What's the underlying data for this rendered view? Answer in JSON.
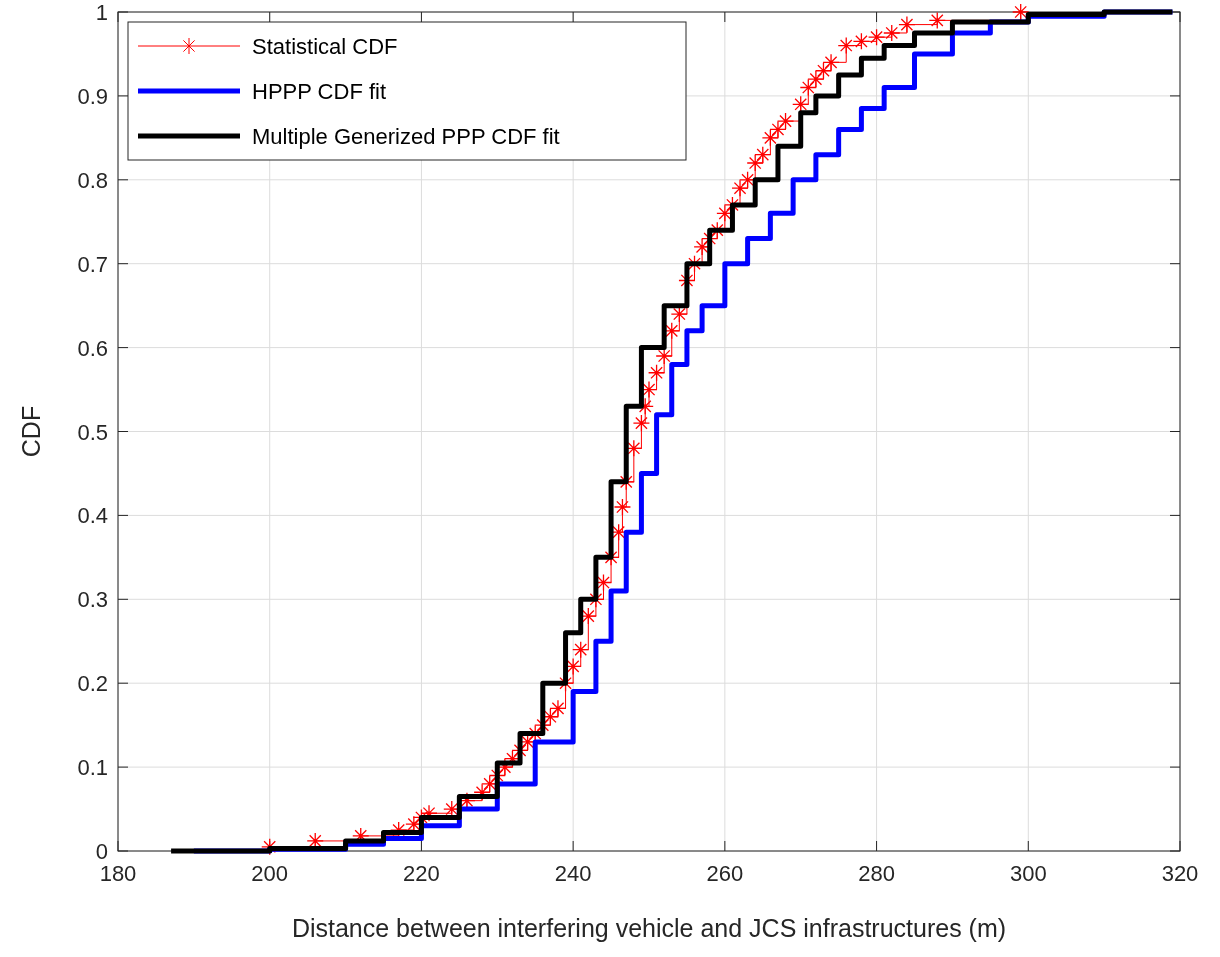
{
  "chart_data": {
    "type": "step",
    "xlabel": "Distance between interfering vehicle and JCS infrastructures (m)",
    "ylabel": "CDF",
    "xlim": [
      180,
      320
    ],
    "xticks": [
      180,
      200,
      220,
      240,
      260,
      280,
      300,
      320
    ],
    "ylim": [
      0,
      1
    ],
    "yticks": [
      0,
      0.1,
      0.2,
      0.3,
      0.4,
      0.5,
      0.6,
      0.7,
      0.8,
      0.9,
      1
    ],
    "grid": true,
    "legend": "top left",
    "series": [
      {
        "name": "Statistical CDF",
        "color": "#ff0000",
        "marker": "cross",
        "x": [
          200,
          206,
          212,
          217,
          219,
          220,
          221,
          224,
          226,
          228,
          229,
          230,
          231,
          232,
          233,
          234,
          235,
          236,
          237,
          238,
          239,
          240,
          241,
          242,
          243,
          244,
          245,
          246,
          246.5,
          247,
          248,
          249,
          249.5,
          250,
          251,
          252,
          253,
          254,
          255,
          256,
          257,
          258,
          259,
          260,
          261,
          262,
          263,
          264,
          265,
          266,
          267,
          268,
          270,
          271,
          272,
          273,
          274,
          276,
          278,
          280,
          282,
          284,
          288,
          299
        ],
        "values": [
          0.005,
          0.012,
          0.018,
          0.025,
          0.032,
          0.04,
          0.045,
          0.05,
          0.06,
          0.07,
          0.08,
          0.09,
          0.1,
          0.11,
          0.12,
          0.13,
          0.14,
          0.15,
          0.16,
          0.17,
          0.2,
          0.22,
          0.24,
          0.28,
          0.3,
          0.32,
          0.35,
          0.38,
          0.41,
          0.44,
          0.48,
          0.51,
          0.53,
          0.55,
          0.57,
          0.59,
          0.62,
          0.64,
          0.68,
          0.7,
          0.72,
          0.73,
          0.74,
          0.76,
          0.77,
          0.79,
          0.8,
          0.82,
          0.83,
          0.85,
          0.86,
          0.87,
          0.89,
          0.91,
          0.92,
          0.93,
          0.94,
          0.96,
          0.965,
          0.97,
          0.975,
          0.985,
          0.99,
          1
        ]
      },
      {
        "name": "HPPP CDF fit",
        "color": "#0000ff",
        "marker": "none",
        "x": [
          190,
          200,
          210,
          215,
          220,
          225,
          230,
          235,
          240,
          243,
          245,
          247,
          249,
          251,
          253,
          255,
          257,
          260,
          263,
          266,
          269,
          272,
          275,
          278,
          281,
          285,
          290,
          295,
          300,
          310,
          319
        ],
        "values": [
          0,
          0.002,
          0.008,
          0.015,
          0.03,
          0.05,
          0.08,
          0.13,
          0.19,
          0.25,
          0.31,
          0.38,
          0.45,
          0.52,
          0.58,
          0.62,
          0.65,
          0.7,
          0.73,
          0.76,
          0.8,
          0.83,
          0.86,
          0.885,
          0.91,
          0.95,
          0.975,
          0.988,
          0.995,
          1,
          1
        ]
      },
      {
        "name": "Multiple Generized PPP CDF fit",
        "color": "#000000",
        "marker": "none",
        "x": [
          187,
          200,
          210,
          215,
          220,
          225,
          230,
          233,
          236,
          239,
          241,
          243,
          245,
          247,
          249,
          252,
          255,
          258,
          261,
          264,
          267,
          270,
          272,
          275,
          278,
          281,
          285,
          290,
          300,
          310,
          319
        ],
        "values": [
          0,
          0.003,
          0.012,
          0.022,
          0.04,
          0.065,
          0.105,
          0.14,
          0.2,
          0.26,
          0.3,
          0.35,
          0.44,
          0.53,
          0.6,
          0.65,
          0.7,
          0.74,
          0.77,
          0.8,
          0.84,
          0.88,
          0.9,
          0.925,
          0.945,
          0.96,
          0.975,
          0.988,
          0.997,
          1,
          1
        ]
      }
    ]
  }
}
